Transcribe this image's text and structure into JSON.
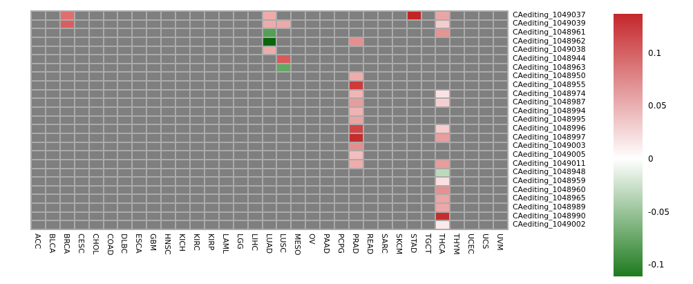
{
  "chart_data": {
    "type": "heatmap",
    "title": "",
    "columns": [
      "ACC",
      "BLCA",
      "BRCA",
      "CESC",
      "CHOL",
      "COAD",
      "DLBC",
      "ESCA",
      "GBM",
      "HNSC",
      "KICH",
      "KIRC",
      "KIRP",
      "LAML",
      "LGG",
      "LIHC",
      "LUAD",
      "LUSC",
      "MESO",
      "OV",
      "PAAD",
      "PCPG",
      "PRAD",
      "READ",
      "SARC",
      "SKCM",
      "STAD",
      "TGCT",
      "THCA",
      "THYM",
      "UCEC",
      "UCS",
      "UVM"
    ],
    "rows": [
      "CAediting_1049037",
      "CAediting_1049039",
      "CAediting_1048961",
      "CAediting_1048962",
      "CAediting_1049038",
      "CAediting_1048944",
      "CAediting_1048963",
      "CAediting_1048950",
      "CAediting_1048955",
      "CAediting_1048974",
      "CAediting_1048987",
      "CAediting_1048994",
      "CAediting_1048995",
      "CAediting_1048996",
      "CAediting_1048997",
      "CAediting_1049003",
      "CAediting_1049005",
      "CAediting_1049011",
      "CAediting_1048948",
      "CAediting_1048959",
      "CAediting_1048960",
      "CAediting_1048965",
      "CAediting_1048989",
      "CAediting_1048990",
      "CAediting_1049002"
    ],
    "na_color": "#7F7F7F",
    "gridline_color": "#ABABAB",
    "cells": [
      {
        "row": "CAediting_1049037",
        "col": "BRCA",
        "value": 0.092,
        "color": "#E06E6E"
      },
      {
        "row": "CAediting_1049039",
        "col": "BRCA",
        "value": 0.102,
        "color": "#DB5E5E"
      },
      {
        "row": "CAediting_1049037",
        "col": "LUAD",
        "value": 0.053,
        "color": "#EFABAB"
      },
      {
        "row": "CAediting_1049039",
        "col": "LUAD",
        "value": 0.053,
        "color": "#EFABAB"
      },
      {
        "row": "CAediting_1048961",
        "col": "LUAD",
        "value": -0.084,
        "color": "#55A055"
      },
      {
        "row": "CAediting_1048962",
        "col": "LUAD",
        "value": -0.11,
        "color": "#0B650B"
      },
      {
        "row": "CAediting_1049038",
        "col": "LUAD",
        "value": 0.053,
        "color": "#EFABAB"
      },
      {
        "row": "CAediting_1049039",
        "col": "LUSC",
        "value": 0.055,
        "color": "#EFA8A8"
      },
      {
        "row": "CAediting_1048944",
        "col": "LUSC",
        "value": 0.105,
        "color": "#D95A5A"
      },
      {
        "row": "CAediting_1048963",
        "col": "LUSC",
        "value": -0.075,
        "color": "#62A862"
      },
      {
        "row": "CAediting_1048962",
        "col": "PRAD",
        "value": 0.07,
        "color": "#E49090"
      },
      {
        "row": "CAediting_1048950",
        "col": "PRAD",
        "value": 0.052,
        "color": "#EFACAC"
      },
      {
        "row": "CAediting_1048955",
        "col": "PRAD",
        "value": 0.125,
        "color": "#CE3A3A"
      },
      {
        "row": "CAediting_1048974",
        "col": "PRAD",
        "value": 0.047,
        "color": "#F0B5B5"
      },
      {
        "row": "CAediting_1048987",
        "col": "PRAD",
        "value": 0.063,
        "color": "#E89C9C"
      },
      {
        "row": "CAediting_1048994",
        "col": "PRAD",
        "value": 0.048,
        "color": "#F0B3B3"
      },
      {
        "row": "CAediting_1048995",
        "col": "PRAD",
        "value": 0.058,
        "color": "#EBA4A4"
      },
      {
        "row": "CAediting_1048996",
        "col": "PRAD",
        "value": 0.119,
        "color": "#D04444"
      },
      {
        "row": "CAediting_1048997",
        "col": "PRAD",
        "value": 0.134,
        "color": "#C52C2C"
      },
      {
        "row": "CAediting_1049003",
        "col": "PRAD",
        "value": 0.071,
        "color": "#E48F8F"
      },
      {
        "row": "CAediting_1049005",
        "col": "PRAD",
        "value": 0.042,
        "color": "#F2BDBD"
      },
      {
        "row": "CAediting_1049011",
        "col": "PRAD",
        "value": 0.052,
        "color": "#EFACAC"
      },
      {
        "row": "CAediting_1049037",
        "col": "STAD",
        "value": 0.135,
        "color": "#C32424"
      },
      {
        "row": "CAediting_1049037",
        "col": "THCA",
        "value": 0.056,
        "color": "#EAA6A6"
      },
      {
        "row": "CAediting_1049039",
        "col": "THCA",
        "value": 0.032,
        "color": "#F4CCCC"
      },
      {
        "row": "CAediting_1048961",
        "col": "THCA",
        "value": 0.069,
        "color": "#E59393"
      },
      {
        "row": "CAediting_1048974",
        "col": "THCA",
        "value": 0.018,
        "color": "#FAE2E2"
      },
      {
        "row": "CAediting_1048987",
        "col": "THCA",
        "value": 0.03,
        "color": "#F5CFCF"
      },
      {
        "row": "CAediting_1048996",
        "col": "THCA",
        "value": 0.031,
        "color": "#F5CDCD"
      },
      {
        "row": "CAediting_1048997",
        "col": "THCA",
        "value": 0.062,
        "color": "#E89E9E"
      },
      {
        "row": "CAediting_1049011",
        "col": "THCA",
        "value": 0.063,
        "color": "#E89C9C"
      },
      {
        "row": "CAediting_1048948",
        "col": "THCA",
        "value": -0.033,
        "color": "#BCD9BC"
      },
      {
        "row": "CAediting_1048959",
        "col": "THCA",
        "value": 0.02,
        "color": "#F9DFDF"
      },
      {
        "row": "CAediting_1048960",
        "col": "THCA",
        "value": 0.07,
        "color": "#E59191"
      },
      {
        "row": "CAediting_1048965",
        "col": "THCA",
        "value": 0.056,
        "color": "#ECA6A6"
      },
      {
        "row": "CAediting_1048989",
        "col": "THCA",
        "value": 0.055,
        "color": "#ECA8A8"
      },
      {
        "row": "CAediting_1048990",
        "col": "THCA",
        "value": 0.133,
        "color": "#C62D2D"
      },
      {
        "row": "CAediting_1049002",
        "col": "THCA",
        "value": 0.013,
        "color": "#FBEAEA"
      }
    ],
    "legend": {
      "position": "right",
      "domain_max": 0.137,
      "domain_min": -0.111,
      "top_color": "#C4272B",
      "mid_color": "#FFFFFF",
      "bottom_color": "#1E7B1E",
      "ticks": [
        {
          "label": "0.1",
          "value": 0.1
        },
        {
          "label": "0.05",
          "value": 0.05
        },
        {
          "label": "0",
          "value": 0
        },
        {
          "label": "-0.05",
          "value": -0.05
        },
        {
          "label": "-0.1",
          "value": -0.1
        }
      ]
    }
  }
}
